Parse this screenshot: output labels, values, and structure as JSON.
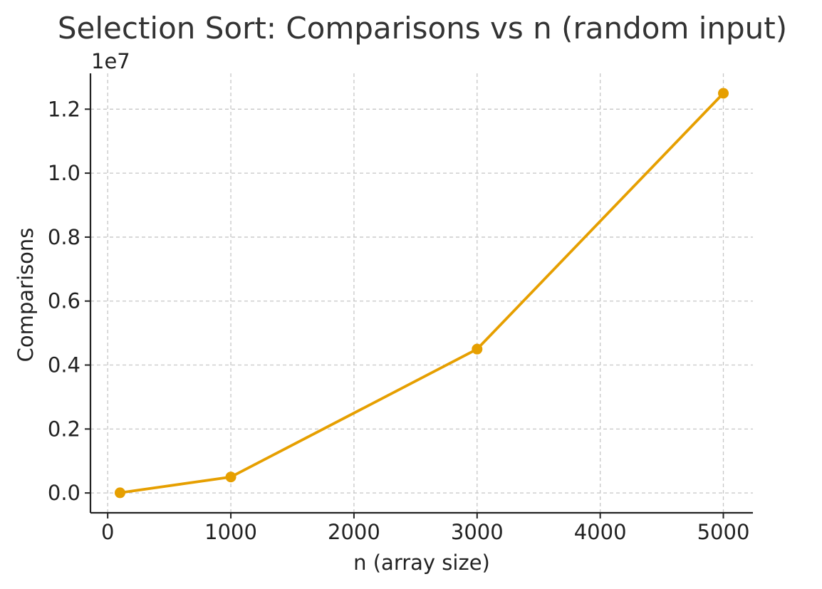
{
  "chart_data": {
    "type": "line",
    "title": "Selection Sort: Comparisons vs n (random input)",
    "xlabel": "n (array size)",
    "ylabel": "Comparisons",
    "y_offset_label": "1e7",
    "y_scale_factor": 10000000,
    "xlim": [
      -140,
      5240
    ],
    "ylim": [
      -620000,
      13120000
    ],
    "x_ticks": [
      0,
      1000,
      2000,
      3000,
      4000,
      5000
    ],
    "x_tick_labels": [
      "0",
      "1000",
      "2000",
      "3000",
      "4000",
      "5000"
    ],
    "y_ticks": [
      0,
      2000000,
      4000000,
      6000000,
      8000000,
      10000000,
      12000000
    ],
    "y_tick_labels": [
      "0.0",
      "0.2",
      "0.4",
      "0.6",
      "0.8",
      "1.0",
      "1.2"
    ],
    "grid": true,
    "series": [
      {
        "color": "#E69F00",
        "marker": "circle",
        "x": [
          100,
          1000,
          3000,
          5000
        ],
        "y": [
          4950,
          499500,
          4498500,
          12497500
        ]
      }
    ]
  }
}
